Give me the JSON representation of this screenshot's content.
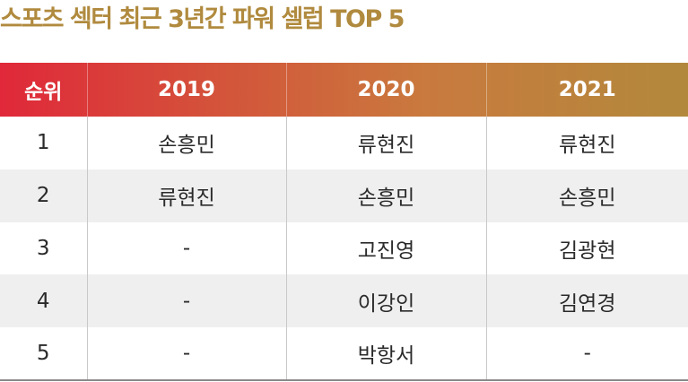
{
  "title": "스포츠 섹터 최근 3년간 파워 셀럽 TOP 5",
  "colors": {
    "title": "#b08a3e",
    "header_start": "#e0283a",
    "header_end": "#b2893c",
    "row_shade": "#efefef"
  },
  "table": {
    "headers": [
      "순위",
      "2019",
      "2020",
      "2021"
    ],
    "rows": [
      [
        "1",
        "손흥민",
        "류현진",
        "류현진"
      ],
      [
        "2",
        "류현진",
        "손흥민",
        "손흥민"
      ],
      [
        "3",
        "-",
        "고진영",
        "김광현"
      ],
      [
        "4",
        "-",
        "이강인",
        "김연경"
      ],
      [
        "5",
        "-",
        "박항서",
        "-"
      ]
    ]
  }
}
